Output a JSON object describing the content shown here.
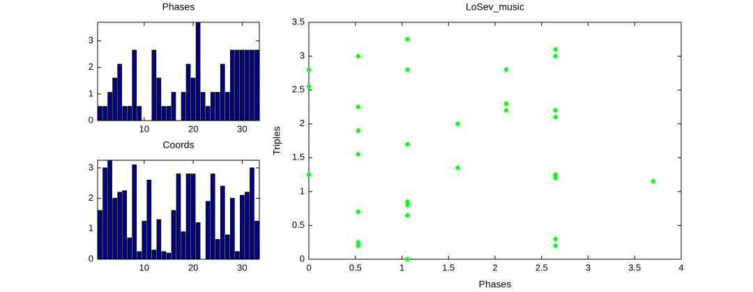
{
  "chart_data": [
    {
      "type": "bar",
      "title": "Phases",
      "color": "#00008f",
      "values": [
        0.53,
        0.53,
        1.06,
        1.6,
        2.12,
        0.53,
        0.53,
        2.65,
        0.53,
        0,
        0,
        2.65,
        1.6,
        0.53,
        0.53,
        1.06,
        0,
        1.06,
        2.12,
        1.6,
        3.7,
        1.06,
        0.53,
        1.06,
        1.06,
        2.12,
        1.06,
        2.65,
        2.65,
        2.65,
        2.65,
        2.65,
        2.65
      ],
      "xlim": [
        0.5,
        33.5
      ],
      "xticks": [
        10,
        20,
        30
      ],
      "ylim": [
        0,
        3.7
      ],
      "yticks": [
        0,
        1,
        2,
        3
      ]
    },
    {
      "type": "bar",
      "title": "Coords",
      "color": "#00008f",
      "values": [
        1.6,
        3.0,
        3.25,
        2.0,
        2.2,
        2.25,
        0.7,
        3.1,
        0.25,
        1.25,
        2.6,
        0.3,
        1.3,
        0.25,
        0.2,
        1.6,
        2.8,
        0.9,
        2.8,
        2.8,
        1.2,
        0,
        1.9,
        2.8,
        0.65,
        2.4,
        0.8,
        2.0,
        0.25,
        2.1,
        2.2,
        3.0,
        1.25
      ],
      "xlim": [
        0.5,
        33.5
      ],
      "xticks": [
        10,
        20,
        30
      ],
      "ylim": [
        0,
        3.25
      ],
      "yticks": [
        0,
        1,
        2,
        3
      ]
    },
    {
      "type": "scatter",
      "title": "LoSev_music",
      "x_label": "Phases",
      "y_label": "Triples",
      "color": "#00ff00",
      "x": [
        0,
        0,
        0,
        0.53,
        0.53,
        0.53,
        0.53,
        0.53,
        0.53,
        0.53,
        1.06,
        1.06,
        1.06,
        1.06,
        1.06,
        1.06,
        1.06,
        1.6,
        1.6,
        2.12,
        2.12,
        2.12,
        2.65,
        2.65,
        2.65,
        2.65,
        2.65,
        2.65,
        2.65,
        2.65,
        3.7
      ],
      "y": [
        2.8,
        2.55,
        1.25,
        3.0,
        2.25,
        1.9,
        1.55,
        0.7,
        0.25,
        0.2,
        3.25,
        2.8,
        1.7,
        0.85,
        0.8,
        0.65,
        0,
        2.0,
        1.35,
        2.8,
        2.3,
        2.2,
        3.1,
        3.0,
        2.2,
        2.1,
        1.25,
        1.2,
        0.3,
        0.2,
        1.15
      ],
      "xlim": [
        0,
        4
      ],
      "xticks": [
        0,
        0.5,
        1,
        1.5,
        2,
        2.5,
        3,
        3.5,
        4
      ],
      "ylim": [
        0,
        3.5
      ],
      "yticks": [
        0,
        0.5,
        1,
        1.5,
        2,
        2.5,
        3,
        3.5
      ]
    }
  ]
}
